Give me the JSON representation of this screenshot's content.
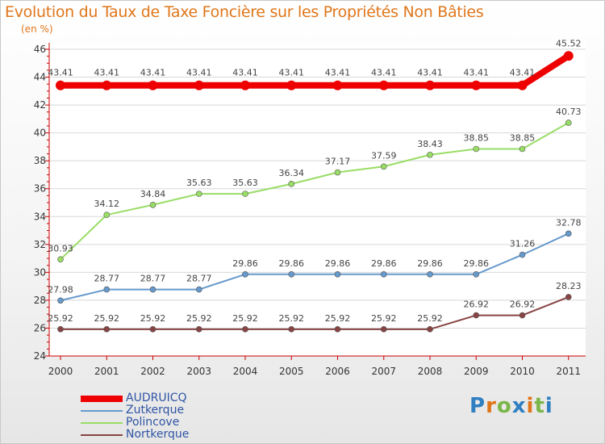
{
  "header": {
    "title": "Evolution du Taux de Taxe Foncière sur les Propriétés Non Bâties",
    "unit": "(en %)"
  },
  "logo": {
    "letters": [
      "P",
      "r",
      "o",
      "x",
      "i",
      "t",
      "i"
    ],
    "colors": [
      "#2f7fc1",
      "#e0761a",
      "#7ab648",
      "#2f7fc1",
      "#e0761a",
      "#7ab648",
      "#2f7fc1"
    ]
  },
  "chart_data": {
    "type": "line",
    "title": "Evolution du Taux de Taxe Foncière sur les Propriétés Non Bâties",
    "ylabel": "(en %)",
    "xlabel": "",
    "x": [
      "2000",
      "2001",
      "2002",
      "2003",
      "2004",
      "2005",
      "2006",
      "2007",
      "2008",
      "2009",
      "2010",
      "2011"
    ],
    "ylim": [
      24,
      46
    ],
    "yticks": [
      24,
      26,
      28,
      30,
      32,
      34,
      36,
      38,
      40,
      42,
      44,
      46
    ],
    "legend_position": "bottom-left",
    "series": [
      {
        "name": "AUDRUICQ",
        "color": "#ee0000",
        "values": [
          43.41,
          43.41,
          43.41,
          43.41,
          43.41,
          43.41,
          43.41,
          43.41,
          43.41,
          43.41,
          43.41,
          45.52
        ],
        "labels": [
          "43.41",
          "43.41",
          "43.41",
          "43.41",
          "43.41",
          "43.41",
          "43.41",
          "43.41",
          "43.41",
          "43.41",
          "43.41",
          "45.52"
        ],
        "emphasis": true
      },
      {
        "name": "Zutkerque",
        "color": "#6699cc",
        "values": [
          27.98,
          28.77,
          28.77,
          28.77,
          29.86,
          29.86,
          29.86,
          29.86,
          29.86,
          29.86,
          31.26,
          32.78
        ],
        "labels": [
          "27.98",
          "28.77",
          "28.77",
          "28.77",
          "29.86",
          "29.86",
          "29.86",
          "29.86",
          "29.86",
          "29.86",
          "31.26",
          "32.78"
        ]
      },
      {
        "name": "Polincove",
        "color": "#99dd66",
        "values": [
          30.93,
          34.12,
          34.84,
          35.63,
          35.63,
          36.34,
          37.17,
          37.59,
          38.43,
          38.85,
          38.85,
          40.73
        ],
        "labels": [
          "30.93",
          "34.12",
          "34.84",
          "35.63",
          "35.63",
          "36.34",
          "37.17",
          "37.59",
          "38.43",
          "38.85",
          "38.85",
          "40.73"
        ]
      },
      {
        "name": "Nortkerque",
        "color": "#884444",
        "values": [
          25.92,
          25.92,
          25.92,
          25.92,
          25.92,
          25.92,
          25.92,
          25.92,
          25.92,
          26.92,
          26.92,
          28.23
        ],
        "labels": [
          "25.92",
          "25.92",
          "25.92",
          "25.92",
          "25.92",
          "25.92",
          "25.92",
          "25.92",
          "25.92",
          "26.92",
          "26.92",
          "28.23"
        ]
      }
    ]
  }
}
